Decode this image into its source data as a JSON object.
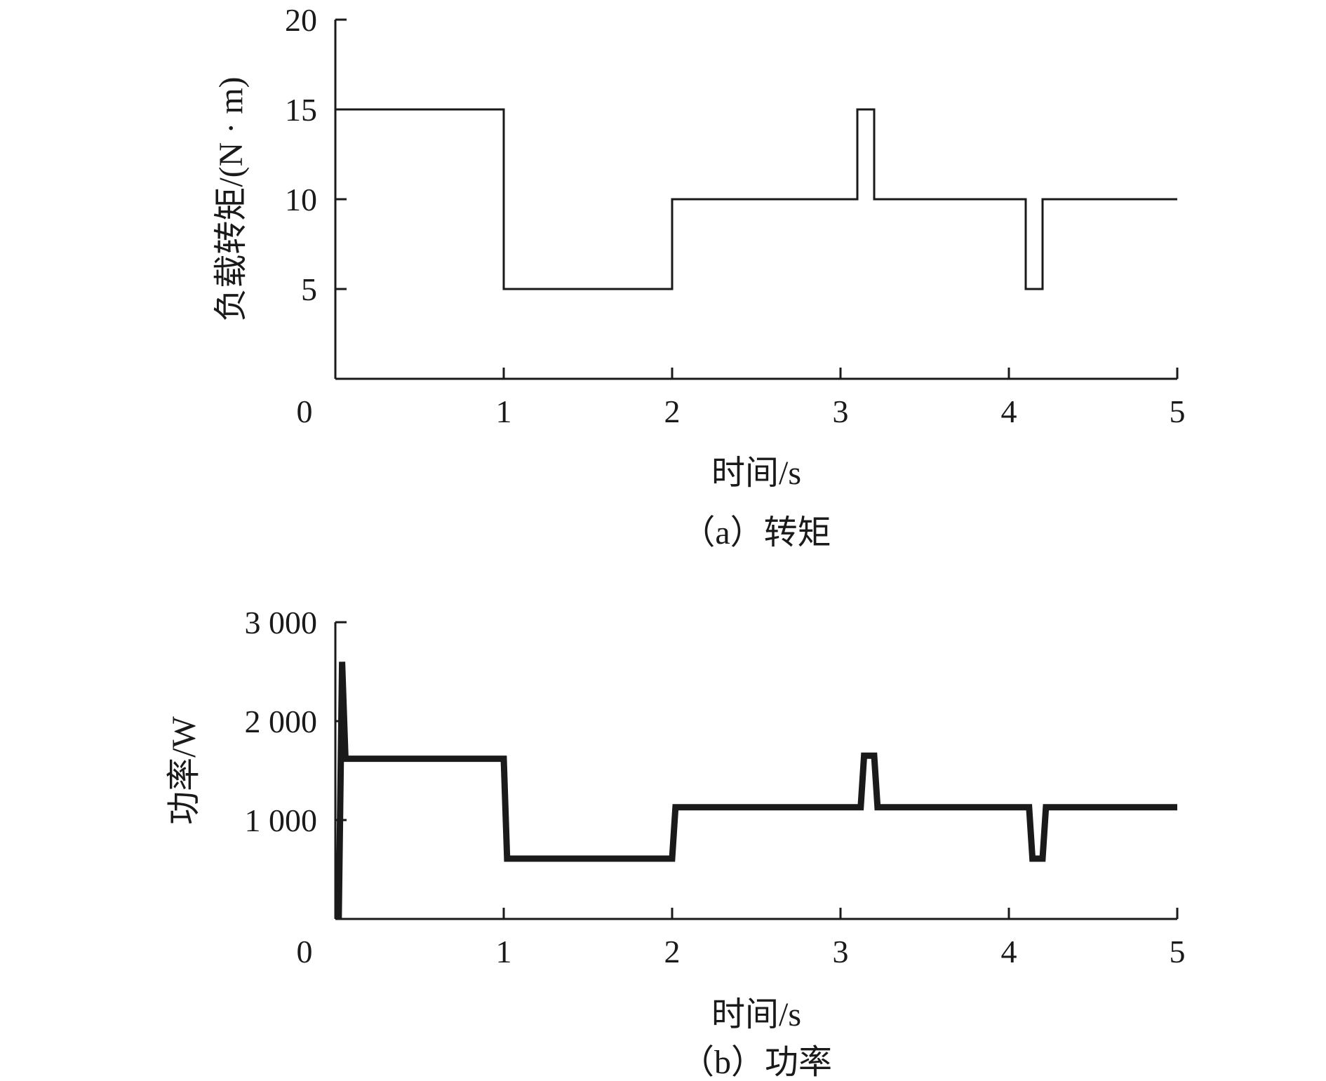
{
  "chart_data": [
    {
      "type": "line",
      "caption": "（a）转矩",
      "xlabel": "时间/s",
      "ylabel": "负载转矩/(N · m)",
      "xlim": [
        0,
        5
      ],
      "ylim": [
        0,
        20
      ],
      "x_ticks": [
        "0",
        "1",
        "2",
        "3",
        "4",
        "5"
      ],
      "y_ticks": [
        "5",
        "10",
        "15",
        "20"
      ],
      "series": [
        {
          "color": "#1a1a1a",
          "x": [
            0,
            1,
            1,
            2,
            2,
            3.1,
            3.1,
            3.2,
            3.2,
            4.1,
            4.1,
            4.2,
            4.2,
            5
          ],
          "y": [
            15,
            15,
            5,
            5,
            10,
            10,
            15,
            15,
            10,
            10,
            5,
            5,
            10,
            10
          ]
        }
      ]
    },
    {
      "type": "line",
      "caption": "（b）功率",
      "xlabel": "时间/s",
      "ylabel": "功率/W",
      "xlim": [
        0,
        5
      ],
      "ylim": [
        0,
        3000
      ],
      "x_ticks": [
        "0",
        "1",
        "2",
        "3",
        "4",
        "5"
      ],
      "y_ticks": [
        "1 000",
        "2 000",
        "3 000"
      ],
      "series": [
        {
          "color": "#1a1a1a",
          "x": [
            0.02,
            0.04,
            0.06,
            1.0,
            1.02,
            2.0,
            2.02,
            3.12,
            3.14,
            3.2,
            3.22,
            4.12,
            4.14,
            4.2,
            4.22,
            5.0
          ],
          "y": [
            0,
            2600,
            1620,
            1620,
            610,
            610,
            1130,
            1130,
            1650,
            1650,
            1130,
            1130,
            610,
            610,
            1130,
            1130
          ]
        }
      ]
    }
  ]
}
